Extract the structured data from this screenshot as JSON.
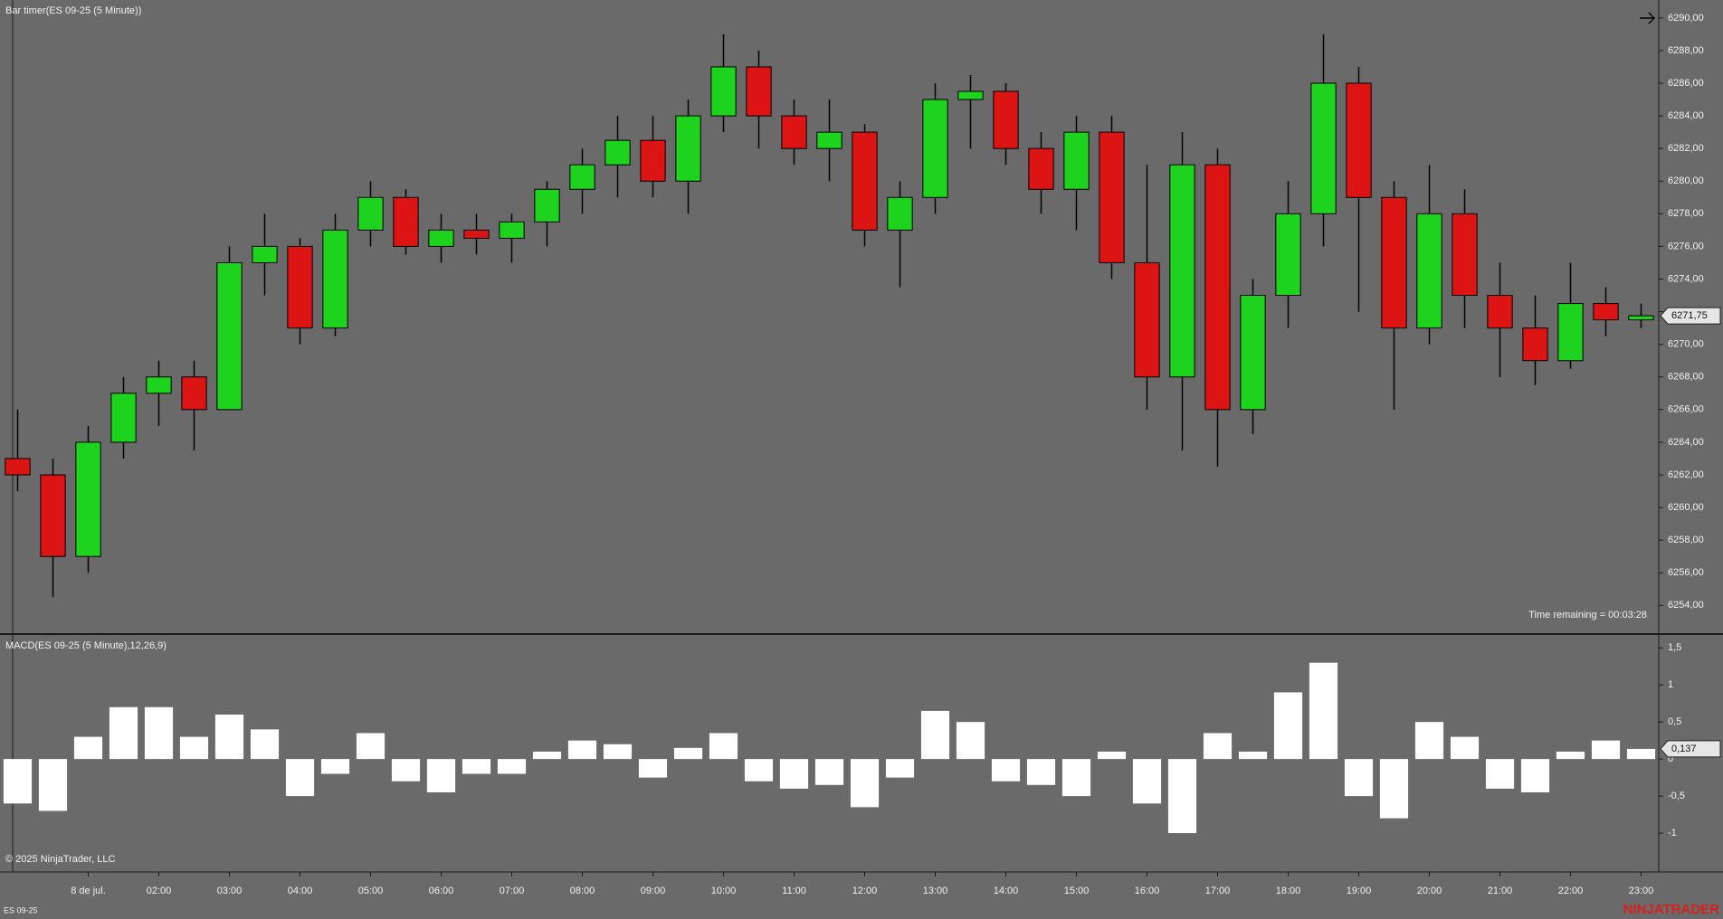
{
  "chart_data": [
    {
      "type": "candlestick",
      "title": "Bar timer(ES 09-25 (5 Minute))",
      "annotation": "Time remaining = 00:03:28",
      "x": [
        0,
        0.5,
        1,
        1.5,
        2,
        2.5,
        3,
        3.5,
        4,
        4.5,
        5,
        5.5,
        6,
        6.5,
        7,
        7.5,
        8,
        8.5,
        9,
        9.5,
        10,
        10.5,
        11,
        11.5,
        12,
        12.5,
        13,
        13.5,
        14,
        14.5,
        15,
        15.5,
        16,
        16.5,
        17,
        17.5,
        18,
        18.5,
        19,
        19.5,
        20,
        20.5,
        21,
        21.5,
        22,
        22.5,
        23
      ],
      "open": [
        6263,
        6262,
        6257,
        6264,
        6267,
        6268,
        6266,
        6275,
        6276,
        6271,
        6277,
        6279,
        6276,
        6277,
        6276.5,
        6277.5,
        6279.5,
        6281,
        6282.5,
        6280,
        6284,
        6287,
        6284,
        6282,
        6283,
        6277,
        6279,
        6285,
        6285.5,
        6282,
        6279.5,
        6283,
        6275,
        6268,
        6281,
        6266,
        6273,
        6278,
        6286,
        6279,
        6271,
        6278,
        6273,
        6271,
        6269,
        6272.5,
        6271.5
      ],
      "high": [
        6266,
        6263,
        6265,
        6268,
        6269,
        6269,
        6276,
        6278,
        6276.5,
        6278,
        6280,
        6279.5,
        6278,
        6278,
        6278,
        6280,
        6282,
        6284,
        6284,
        6285,
        6289,
        6288,
        6285,
        6285,
        6283.5,
        6280,
        6286,
        6286.5,
        6286,
        6283,
        6284,
        6284,
        6281,
        6283,
        6282,
        6274,
        6280,
        6289,
        6287,
        6280,
        6281,
        6279.5,
        6275,
        6273,
        6275,
        6273.5,
        6272.5
      ],
      "low": [
        6261,
        6254.5,
        6256,
        6263,
        6265,
        6263.5,
        6266,
        6273,
        6270,
        6270.5,
        6276,
        6275.5,
        6275,
        6275.5,
        6275,
        6276,
        6278,
        6279,
        6279,
        6278,
        6283,
        6282,
        6281,
        6280,
        6276,
        6273.5,
        6278,
        6282,
        6281,
        6278,
        6277,
        6274,
        6266,
        6263.5,
        6262.5,
        6264.5,
        6271,
        6276,
        6272,
        6266,
        6270,
        6271,
        6268,
        6267.5,
        6268.5,
        6270.5,
        6271
      ],
      "close": [
        6262,
        6257,
        6264,
        6267,
        6268,
        6266,
        6275,
        6276,
        6271,
        6277,
        6279,
        6276,
        6277,
        6276.5,
        6277.5,
        6279.5,
        6281,
        6282.5,
        6280,
        6284,
        6287,
        6284,
        6282,
        6283,
        6277,
        6279,
        6285,
        6285.5,
        6282,
        6279.5,
        6283,
        6275,
        6268,
        6281,
        6266,
        6273,
        6278,
        6286,
        6279,
        6271,
        6278,
        6273,
        6271,
        6269,
        6272.5,
        6271.5,
        6271.75
      ],
      "up_color": "#1ed31e",
      "down_color": "#dc1414",
      "wick_color": "#000000",
      "last_price": {
        "value": 6271.75,
        "label": "6271,75"
      },
      "xlim": [
        -0.25,
        23.25
      ],
      "ylim": [
        6252.3,
        6291.1
      ],
      "yticks": [
        {
          "value": 6254,
          "label": "6254,00"
        },
        {
          "value": 6256,
          "label": "6256,00"
        },
        {
          "value": 6258,
          "label": "6258,00"
        },
        {
          "value": 6260,
          "label": "6260,00"
        },
        {
          "value": 6262,
          "label": "6262,00"
        },
        {
          "value": 6264,
          "label": "6264,00"
        },
        {
          "value": 6266,
          "label": "6266,00"
        },
        {
          "value": 6268,
          "label": "6268,00"
        },
        {
          "value": 6270,
          "label": "6270,00"
        },
        {
          "value": 6272,
          "label": "6272,00"
        },
        {
          "value": 6274,
          "label": "6274,00"
        },
        {
          "value": 6276,
          "label": "6276,00"
        },
        {
          "value": 6278,
          "label": "6278,00"
        },
        {
          "value": 6280,
          "label": "6280,00"
        },
        {
          "value": 6282,
          "label": "6282,00"
        },
        {
          "value": 6284,
          "label": "6284,00"
        },
        {
          "value": 6286,
          "label": "6286,00"
        },
        {
          "value": 6288,
          "label": "6288,00"
        },
        {
          "value": 6290,
          "label": "6290,00"
        }
      ]
    },
    {
      "type": "bar",
      "title": "MACD(ES 09-25 (5 Minute),12,26,9)",
      "x": [
        0,
        0.5,
        1,
        1.5,
        2,
        2.5,
        3,
        3.5,
        4,
        4.5,
        5,
        5.5,
        6,
        6.5,
        7,
        7.5,
        8,
        8.5,
        9,
        9.5,
        10,
        10.5,
        11,
        11.5,
        12,
        12.5,
        13,
        13.5,
        14,
        14.5,
        15,
        15.5,
        16,
        16.5,
        17,
        17.5,
        18,
        18.5,
        19,
        19.5,
        20,
        20.5,
        21,
        21.5,
        22,
        22.5,
        23
      ],
      "values": [
        -0.6,
        -0.7,
        0.3,
        0.7,
        0.7,
        0.3,
        0.6,
        0.4,
        -0.5,
        -0.2,
        0.35,
        -0.3,
        -0.45,
        -0.2,
        -0.2,
        0.1,
        0.25,
        0.2,
        -0.25,
        0.15,
        0.35,
        -0.3,
        -0.4,
        -0.35,
        -0.65,
        -0.25,
        0.65,
        0.5,
        -0.3,
        -0.35,
        -0.5,
        0.1,
        -0.6,
        -1.0,
        0.35,
        0.1,
        0.9,
        1.3,
        -0.5,
        -0.8,
        0.5,
        0.3,
        -0.4,
        -0.45,
        0.1,
        0.25,
        0.137
      ],
      "color": "#ffffff",
      "last_value": {
        "value": 0.137,
        "label": "0,137"
      },
      "xlim": [
        -0.25,
        23.25
      ],
      "ylim": [
        -1.5,
        1.65
      ],
      "yticks": [
        -1,
        {
          "value": -0.5,
          "label": "-0,5"
        },
        0,
        {
          "value": 0.5,
          "label": "0,5"
        },
        1,
        {
          "value": 1.5,
          "label": "1,5"
        }
      ],
      "xticks": [
        {
          "value": 1,
          "label": "8 de jul."
        },
        {
          "value": 2,
          "label": "02:00"
        },
        {
          "value": 3,
          "label": "03:00"
        },
        {
          "value": 4,
          "label": "04:00"
        },
        {
          "value": 5,
          "label": "05:00"
        },
        {
          "value": 6,
          "label": "06:00"
        },
        {
          "value": 7,
          "label": "07:00"
        },
        {
          "value": 8,
          "label": "08:00"
        },
        {
          "value": 9,
          "label": "09:00"
        },
        {
          "value": 10,
          "label": "10:00"
        },
        {
          "value": 11,
          "label": "11:00"
        },
        {
          "value": 12,
          "label": "12:00"
        },
        {
          "value": 13,
          "label": "13:00"
        },
        {
          "value": 14,
          "label": "14:00"
        },
        {
          "value": 15,
          "label": "15:00"
        },
        {
          "value": 16,
          "label": "16:00"
        },
        {
          "value": 17,
          "label": "17:00"
        },
        {
          "value": 18,
          "label": "18:00"
        },
        {
          "value": 19,
          "label": "19:00"
        },
        {
          "value": 20,
          "label": "20:00"
        },
        {
          "value": 21,
          "label": "21:00"
        },
        {
          "value": 22,
          "label": "22:00"
        },
        {
          "value": 23,
          "label": "23:00"
        }
      ]
    }
  ],
  "footer": {
    "copyright": "© 2025 NinjaTrader, LLC",
    "instrument": "ES 09-25",
    "watermark": "NINJATRADER"
  }
}
